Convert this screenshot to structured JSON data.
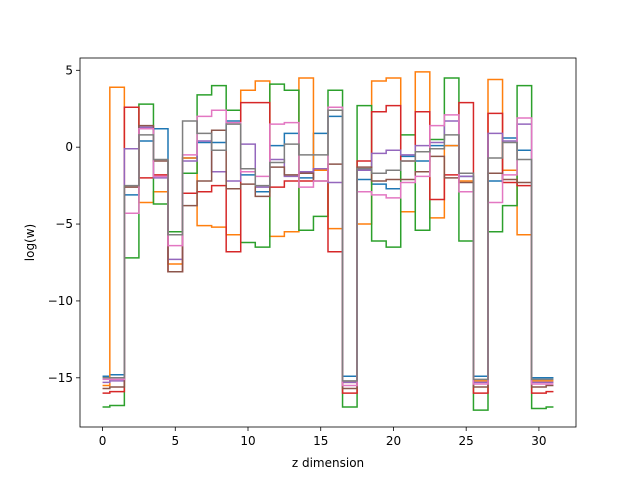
{
  "chart_data": {
    "type": "line",
    "drawstyle": "steps-mid",
    "title": "",
    "xlabel": "z dimension",
    "ylabel": "log(w)",
    "xlim": [
      -1.55,
      32.55
    ],
    "ylim": [
      -18.2,
      5.8
    ],
    "xticks": [
      0,
      5,
      10,
      15,
      20,
      25,
      30
    ],
    "yticks": [
      5,
      0,
      -5,
      -10,
      -15
    ],
    "ytick_labels": [
      "5",
      "0",
      "−5",
      "−10",
      "−15"
    ],
    "grid": false,
    "x": [
      0,
      1,
      2,
      3,
      4,
      5,
      6,
      7,
      8,
      9,
      10,
      11,
      12,
      13,
      14,
      15,
      16,
      17,
      18,
      19,
      20,
      21,
      22,
      23,
      24,
      25,
      26,
      27,
      28,
      29,
      30,
      31
    ],
    "series": [
      {
        "color": "#1f77b4",
        "values": [
          -14.9,
          -14.8,
          -3.1,
          0.4,
          1.2,
          -5.5,
          -0.7,
          0.3,
          0.3,
          1.7,
          -1.8,
          -2.9,
          0.1,
          0.9,
          -2.0,
          0.9,
          2.0,
          -14.9,
          -2.1,
          -2.4,
          -2.7,
          -0.6,
          -0.9,
          0.1,
          0.1,
          -1.9,
          -14.9,
          -2.2,
          0.6,
          -0.2,
          -15.0,
          -15.0
        ]
      },
      {
        "color": "#ff7f0e",
        "values": [
          -15.5,
          3.9,
          -0.1,
          -3.6,
          -2.9,
          -7.6,
          -0.7,
          -5.1,
          -5.2,
          -5.7,
          3.7,
          4.3,
          -5.8,
          -5.5,
          4.5,
          -1.5,
          -5.3,
          -15.3,
          -5.0,
          4.3,
          4.5,
          -4.2,
          4.9,
          -4.6,
          0.1,
          -2.2,
          -15.2,
          4.4,
          -1.5,
          -5.7,
          -15.2,
          -15.2
        ]
      },
      {
        "color": "#2ca02c",
        "values": [
          -16.9,
          -16.8,
          -7.2,
          2.8,
          -3.7,
          -5.5,
          -1.7,
          3.4,
          4.0,
          2.4,
          -6.2,
          -6.5,
          4.1,
          3.7,
          -5.4,
          -4.5,
          3.7,
          -16.9,
          2.7,
          -6.1,
          -6.5,
          0.8,
          -5.4,
          0.5,
          4.5,
          -6.1,
          -17.1,
          -5.5,
          -3.8,
          4.0,
          -17.0,
          -16.9
        ]
      },
      {
        "color": "#d62728",
        "values": [
          -16.0,
          -15.9,
          2.6,
          -2.0,
          -1.8,
          -8.1,
          -3.0,
          -2.9,
          -2.5,
          -6.8,
          2.9,
          2.9,
          -2.6,
          -2.2,
          -2.2,
          -1.4,
          -6.8,
          -16.0,
          -0.9,
          2.3,
          2.7,
          -0.9,
          2.3,
          -3.4,
          -1.8,
          2.9,
          -16.0,
          2.2,
          -2.3,
          -2.5,
          -16.0,
          -15.9
        ]
      },
      {
        "color": "#9467bd",
        "values": [
          -15.3,
          -15.2,
          -0.1,
          1.3,
          -2.0,
          -7.3,
          -0.9,
          0.4,
          -1.6,
          -2.2,
          0.2,
          -2.6,
          -0.8,
          -1.9,
          -1.6,
          -1.4,
          -2.3,
          -15.3,
          -1.5,
          -0.4,
          -0.2,
          -0.5,
          0.1,
          0.3,
          1.7,
          -1.9,
          -15.3,
          0.9,
          0.4,
          1.5,
          -15.3,
          -15.3
        ]
      },
      {
        "color": "#8c564b",
        "values": [
          -15.7,
          -15.6,
          -2.6,
          1.4,
          -0.9,
          -8.1,
          -3.8,
          -2.2,
          1.1,
          -2.7,
          -2.4,
          -3.2,
          -1.3,
          -1.8,
          -1.7,
          -2.2,
          -1.1,
          -15.7,
          -1.3,
          -2.2,
          -2.1,
          -2.1,
          -1.6,
          -0.6,
          -2.0,
          -2.3,
          -15.6,
          -1.7,
          -2.1,
          -2.3,
          -15.6,
          -15.5
        ]
      },
      {
        "color": "#e377c2",
        "values": [
          -15.1,
          -15.1,
          -4.3,
          1.2,
          -1.9,
          -6.4,
          -0.5,
          2.0,
          2.4,
          1.6,
          -1.6,
          -1.9,
          1.5,
          1.6,
          -2.6,
          -2.2,
          2.6,
          -15.5,
          -2.9,
          -3.1,
          -3.3,
          -2.3,
          -1.9,
          1.4,
          2.1,
          -2.9,
          -15.4,
          -3.6,
          -1.8,
          1.9,
          -15.4,
          -15.4
        ]
      },
      {
        "color": "#7f7f7f",
        "values": [
          -15.0,
          -15.0,
          -2.5,
          0.8,
          -0.8,
          -5.7,
          1.7,
          0.9,
          -0.2,
          1.5,
          -1.4,
          -2.5,
          -1.0,
          0.2,
          -0.5,
          -0.5,
          2.4,
          -15.2,
          -1.4,
          -1.7,
          -1.5,
          -0.9,
          -0.3,
          -0.1,
          0.8,
          -1.7,
          -15.1,
          -0.7,
          0.3,
          -0.8,
          -15.1,
          -15.1
        ]
      }
    ]
  }
}
